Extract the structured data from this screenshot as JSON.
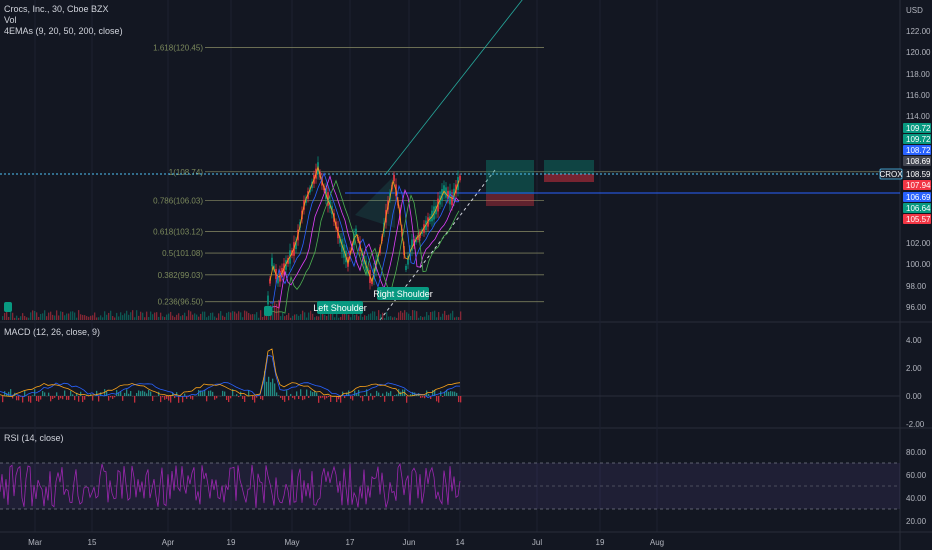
{
  "header": {
    "symbol_line": "Crocs, Inc., 30, Cboe BZX",
    "vol_label": "Vol",
    "ema_label": "4EMAs (9, 20, 50, 200, close)"
  },
  "macd": {
    "title": "MACD (12, 26, close, 9)"
  },
  "rsi": {
    "title": "RSI (14, close)"
  },
  "currency": "USD",
  "price_axis": {
    "ticks": [
      "122.00",
      "120.00",
      "118.00",
      "116.00",
      "114.00",
      "102.00",
      "100.00",
      "98.00",
      "96.00"
    ],
    "badges": [
      {
        "text": "109.72",
        "color": "#089981"
      },
      {
        "text": "109.72",
        "color": "#089981"
      },
      {
        "text": "108.72",
        "color": "#2962ff"
      },
      {
        "text": "108.69",
        "color": "#434651"
      },
      {
        "text": "108.59",
        "color": "#1e222d"
      },
      {
        "text": "107.94",
        "color": "#f23645"
      },
      {
        "text": "106.69",
        "color": "#2962ff"
      },
      {
        "text": "106.64",
        "color": "#089981"
      },
      {
        "text": "105.57",
        "color": "#f23645"
      }
    ],
    "symbol_tag": "CROX"
  },
  "macd_axis": {
    "ticks": [
      "4.00",
      "2.00",
      "0.00",
      "-2.00"
    ]
  },
  "rsi_axis": {
    "ticks": [
      "80.00",
      "60.00",
      "40.00",
      "20.00"
    ]
  },
  "time_axis": {
    "ticks": [
      "Mar",
      "15",
      "Apr",
      "19",
      "May",
      "17",
      "Jun",
      "14",
      "Jul",
      "19",
      "Aug"
    ]
  },
  "fib_levels": [
    {
      "label": "1.618(120.45)",
      "value": 120.45
    },
    {
      "label": "1(108.74)",
      "value": 108.74
    },
    {
      "label": "0.786(106.03)",
      "value": 106.03
    },
    {
      "label": "0.618(103.12)",
      "value": 103.12
    },
    {
      "label": "0.5(101.08)",
      "value": 101.08
    },
    {
      "label": "0.382(99.03)",
      "value": 99.03
    },
    {
      "label": "0.236(96.50)",
      "value": 96.5
    }
  ],
  "annotations": {
    "left_shoulder": "Left Shoulder",
    "right_shoulder": "Right Shoulder"
  },
  "colors": {
    "up": "#089981",
    "down": "#f23645",
    "accent": "#2962ff",
    "rsi": "#9c27b0",
    "fib": "#787b5b"
  },
  "chart_data": [
    {
      "type": "line",
      "title": "Crocs, Inc., 30, Cboe BZX",
      "ylabel": "USD",
      "ylim": [
        95,
        123
      ],
      "x": [
        "Mar",
        "15",
        "Apr",
        "19",
        "May",
        "17",
        "Jun",
        "14"
      ],
      "series": [
        {
          "name": "CROX",
          "values": [
            null,
            null,
            null,
            null,
            108.7,
            98.5,
            108.6,
            108.59
          ]
        }
      ]
    },
    {
      "type": "line",
      "title": "MACD (12, 26, close, 9)",
      "ylim": [
        -2,
        4.5
      ]
    },
    {
      "type": "line",
      "title": "RSI (14, close)",
      "ylim": [
        15,
        85
      ]
    }
  ]
}
